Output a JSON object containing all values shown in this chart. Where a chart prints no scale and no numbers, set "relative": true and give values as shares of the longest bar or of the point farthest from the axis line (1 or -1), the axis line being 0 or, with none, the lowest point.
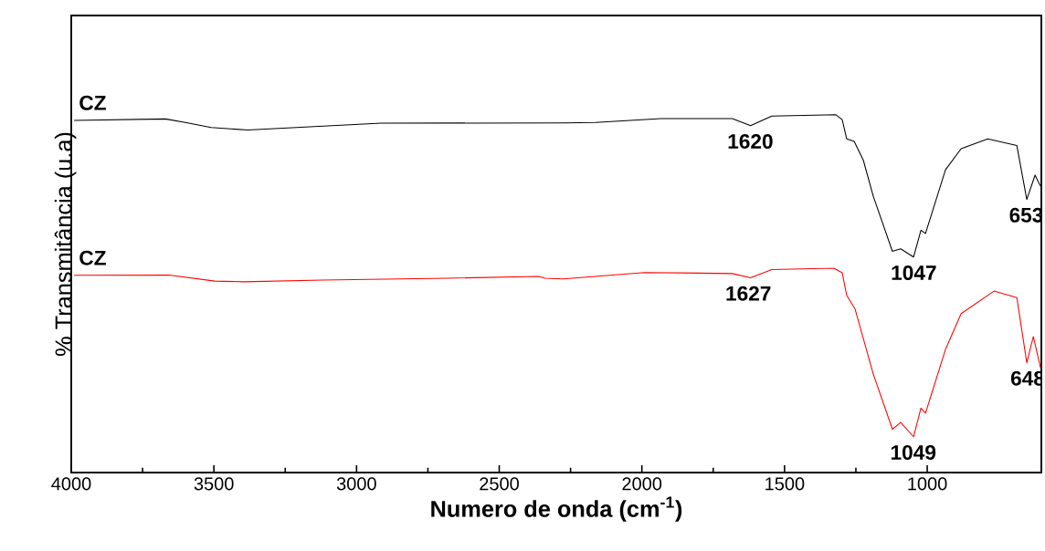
{
  "chart_data": {
    "type": "line",
    "relative": true,
    "xlabel": "Numero de onda (cm$^{-1}$)",
    "ylabel": "% Transmitância (u.a)",
    "xlim": [
      4000,
      600
    ],
    "xticks": [
      4000,
      3500,
      3000,
      2500,
      2000,
      1500,
      1000
    ],
    "legend": false,
    "grid": false,
    "marker": "none",
    "line_style": "solid",
    "series": [
      {
        "name": "CZ",
        "color": "#000000",
        "x": [
          3990,
          3670,
          3600,
          3510,
          3381,
          3164,
          2913,
          2272,
          2163,
          1933,
          1683,
          1619,
          1545,
          1321,
          1298,
          1282,
          1256,
          1224,
          1189,
          1122,
          1093,
          1048,
          1022,
          1006,
          936,
          881,
          788,
          686,
          651,
          622,
          603
        ],
        "values": [
          0.984,
          0.988,
          0.978,
          0.964,
          0.957,
          0.966,
          0.976,
          0.977,
          0.978,
          0.989,
          0.989,
          0.969,
          0.996,
          1.0,
          0.986,
          0.932,
          0.925,
          0.873,
          0.772,
          0.618,
          0.625,
          0.602,
          0.677,
          0.668,
          0.846,
          0.905,
          0.932,
          0.914,
          0.763,
          0.831,
          0.8
        ]
      },
      {
        "name": "CZ",
        "color": "#ff0000",
        "x": [
          3990,
          3657,
          3497,
          3394,
          3119,
          2683,
          2362,
          2340,
          2276,
          1990,
          1683,
          1619,
          1545,
          1327,
          1298,
          1282,
          1253,
          1189,
          1122,
          1093,
          1048,
          1022,
          1006,
          936,
          881,
          766,
          686,
          651,
          628,
          603
        ],
        "values": [
          0.551,
          0.552,
          0.535,
          0.533,
          0.538,
          0.543,
          0.548,
          0.543,
          0.541,
          0.559,
          0.556,
          0.544,
          0.567,
          0.571,
          0.558,
          0.495,
          0.457,
          0.275,
          0.121,
          0.14,
          0.1,
          0.18,
          0.166,
          0.344,
          0.444,
          0.507,
          0.489,
          0.307,
          0.38,
          0.293
        ]
      }
    ],
    "annotations": [
      {
        "text": "1620",
        "x": 1620,
        "y": 0.969
      },
      {
        "text": "1047",
        "x": 1047,
        "y": 0.602
      },
      {
        "text": "653",
        "x": 653,
        "y": 0.763
      },
      {
        "text": "1627",
        "x": 1627,
        "y": 0.544
      },
      {
        "text": "1049",
        "x": 1049,
        "y": 0.1
      },
      {
        "text": "648",
        "x": 648,
        "y": 0.307
      }
    ]
  }
}
